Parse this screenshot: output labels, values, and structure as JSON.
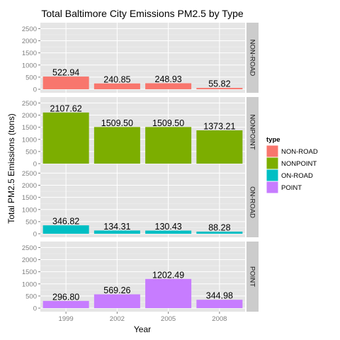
{
  "chart_data": {
    "type": "bar",
    "title": "Total Baltimore City Emissions PM2.5 by Type",
    "xlabel": "Year",
    "ylabel": "Total PM2.5 Emissions (tons)",
    "categories": [
      "1999",
      "2002",
      "2005",
      "2008"
    ],
    "y_ticks": [
      "0",
      "500",
      "1000",
      "1500",
      "2000",
      "2500"
    ],
    "ylim": [
      0,
      2600
    ],
    "grid": true,
    "legend_position": "right",
    "legend_title": "type",
    "series": [
      {
        "name": "NON-ROAD",
        "color": "#F8766D",
        "values": [
          522.94,
          240.85,
          248.93,
          55.82
        ],
        "labels": [
          "522.94",
          "240.85",
          "248.93",
          "55.82"
        ]
      },
      {
        "name": "NONPOINT",
        "color": "#7CAE00",
        "values": [
          2107.62,
          1509.5,
          1509.5,
          1373.21
        ],
        "labels": [
          "2107.62",
          "1509.50",
          "1509.50",
          "1373.21"
        ]
      },
      {
        "name": "ON-ROAD",
        "color": "#00BFC4",
        "values": [
          346.82,
          134.31,
          130.43,
          88.28
        ],
        "labels": [
          "346.82",
          "134.31",
          "130.43",
          "88.28"
        ]
      },
      {
        "name": "POINT",
        "color": "#C77CFF",
        "values": [
          296.8,
          569.26,
          1202.49,
          344.98
        ],
        "labels": [
          "296.80",
          "569.26",
          "1202.49",
          "344.98"
        ]
      }
    ]
  }
}
